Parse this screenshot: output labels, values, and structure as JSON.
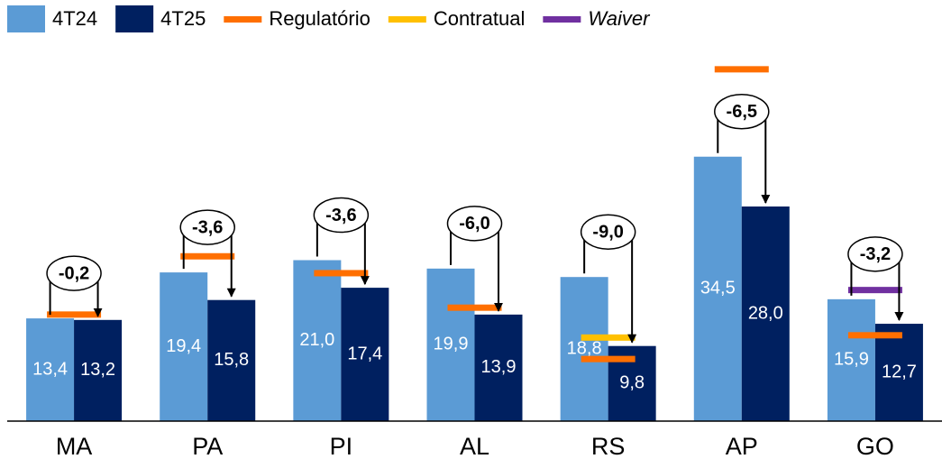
{
  "chart_data": {
    "type": "bar",
    "categories": [
      "MA",
      "PA",
      "PI",
      "AL",
      "RS",
      "AP",
      "GO"
    ],
    "series": [
      {
        "name": "4T24",
        "color": "#5b9bd5",
        "values": [
          13.4,
          19.4,
          21.0,
          19.9,
          18.8,
          34.5,
          15.9
        ],
        "value_labels": [
          "13,4",
          "19,4",
          "21,0",
          "19,9",
          "18,8",
          "34,5",
          "15,9"
        ]
      },
      {
        "name": "4T25",
        "color": "#002060",
        "values": [
          13.2,
          15.8,
          17.4,
          13.9,
          9.8,
          28.0,
          12.7
        ],
        "value_labels": [
          "13,2",
          "15,8",
          "17,4",
          "13,9",
          "9,8",
          "28,0",
          "12,7"
        ]
      }
    ],
    "targets": [
      {
        "name": "Regulatório",
        "color": "#ff6f00",
        "values": [
          13.9,
          21.5,
          19.3,
          14.8,
          8.1,
          45.9,
          11.2
        ]
      },
      {
        "name": "Contratual",
        "color": "#ffc000",
        "values": [
          null,
          null,
          null,
          null,
          10.9,
          null,
          null
        ]
      },
      {
        "name": "Waiver",
        "color": "#7030a0",
        "italic": true,
        "values": [
          null,
          null,
          null,
          null,
          null,
          null,
          17.1
        ]
      }
    ],
    "differences": {
      "values": [
        -0.2,
        -3.6,
        -3.6,
        -6.0,
        -9.0,
        -6.5,
        -3.2
      ],
      "value_labels": [
        "-0,2",
        "-3,6",
        "-3,6",
        "-6,0",
        "-9,0",
        "-6,5",
        "-3,2"
      ]
    },
    "ylim": [
      0,
      48
    ]
  }
}
